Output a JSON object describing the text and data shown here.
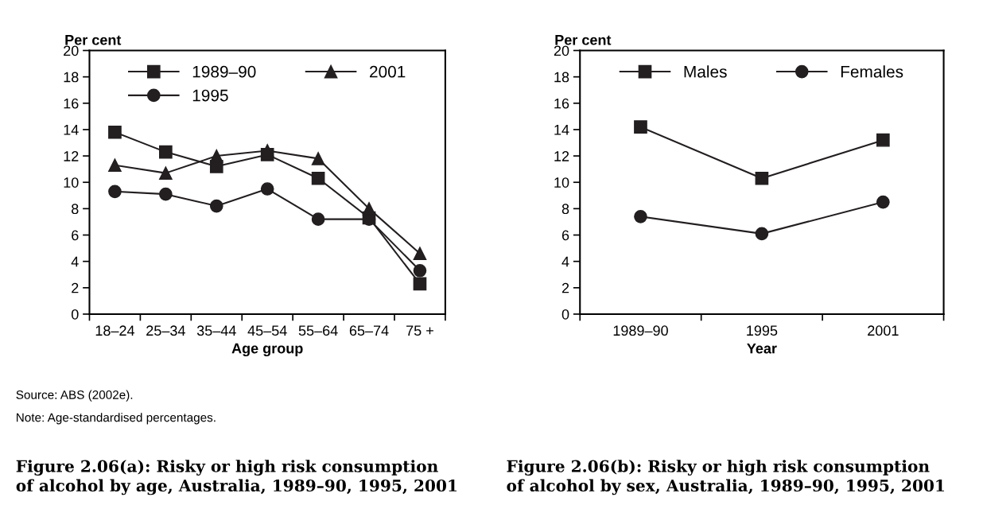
{
  "chart_data": [
    {
      "type": "line",
      "title": "Figure 2.06(a): Risky or high risk consumption\nof alcohol by age, Australia, 1989–90, 1995, 2001",
      "xlabel": "Age group",
      "ylabel": "Per cent",
      "categories": [
        "18–24",
        "25–34",
        "35–44",
        "45–54",
        "55–64",
        "65–74",
        "75 +"
      ],
      "series": [
        {
          "name": "1989–90",
          "color": "#231f20",
          "marker": "square",
          "values": [
            13.8,
            12.3,
            11.2,
            12.1,
            10.3,
            7.3,
            2.3
          ]
        },
        {
          "name": "1995",
          "color": "#231f20",
          "marker": "circle",
          "values": [
            9.3,
            9.1,
            8.2,
            9.5,
            7.2,
            7.2,
            3.3
          ]
        },
        {
          "name": "2001",
          "color": "#231f20",
          "marker": "triangle",
          "values": [
            11.3,
            10.7,
            12.0,
            12.4,
            11.8,
            8.0,
            4.6
          ]
        }
      ],
      "ylim": [
        0,
        20
      ],
      "yticks": [
        0,
        2,
        4,
        6,
        8,
        10,
        12,
        14,
        16,
        18,
        20
      ],
      "grid": false,
      "legend": "top",
      "annotations": [
        "Source: ABS (2002e).",
        "Note: Age-standardised percentages."
      ]
    },
    {
      "type": "line",
      "title": "Figure 2.06(b): Risky or high risk consumption\nof alcohol by sex, Australia, 1989–90, 1995, 2001",
      "xlabel": "Year",
      "ylabel": "Per cent",
      "categories": [
        "1989–90",
        "1995",
        "2001"
      ],
      "series": [
        {
          "name": "Males",
          "color": "#231f20",
          "marker": "square",
          "values": [
            14.2,
            10.3,
            13.2
          ]
        },
        {
          "name": "Females",
          "color": "#231f20",
          "marker": "circle",
          "values": [
            7.4,
            6.1,
            8.5
          ]
        }
      ],
      "ylim": [
        0,
        20
      ],
      "yticks": [
        0,
        2,
        4,
        6,
        8,
        10,
        12,
        14,
        16,
        18,
        20
      ],
      "grid": false,
      "legend": "top"
    }
  ]
}
